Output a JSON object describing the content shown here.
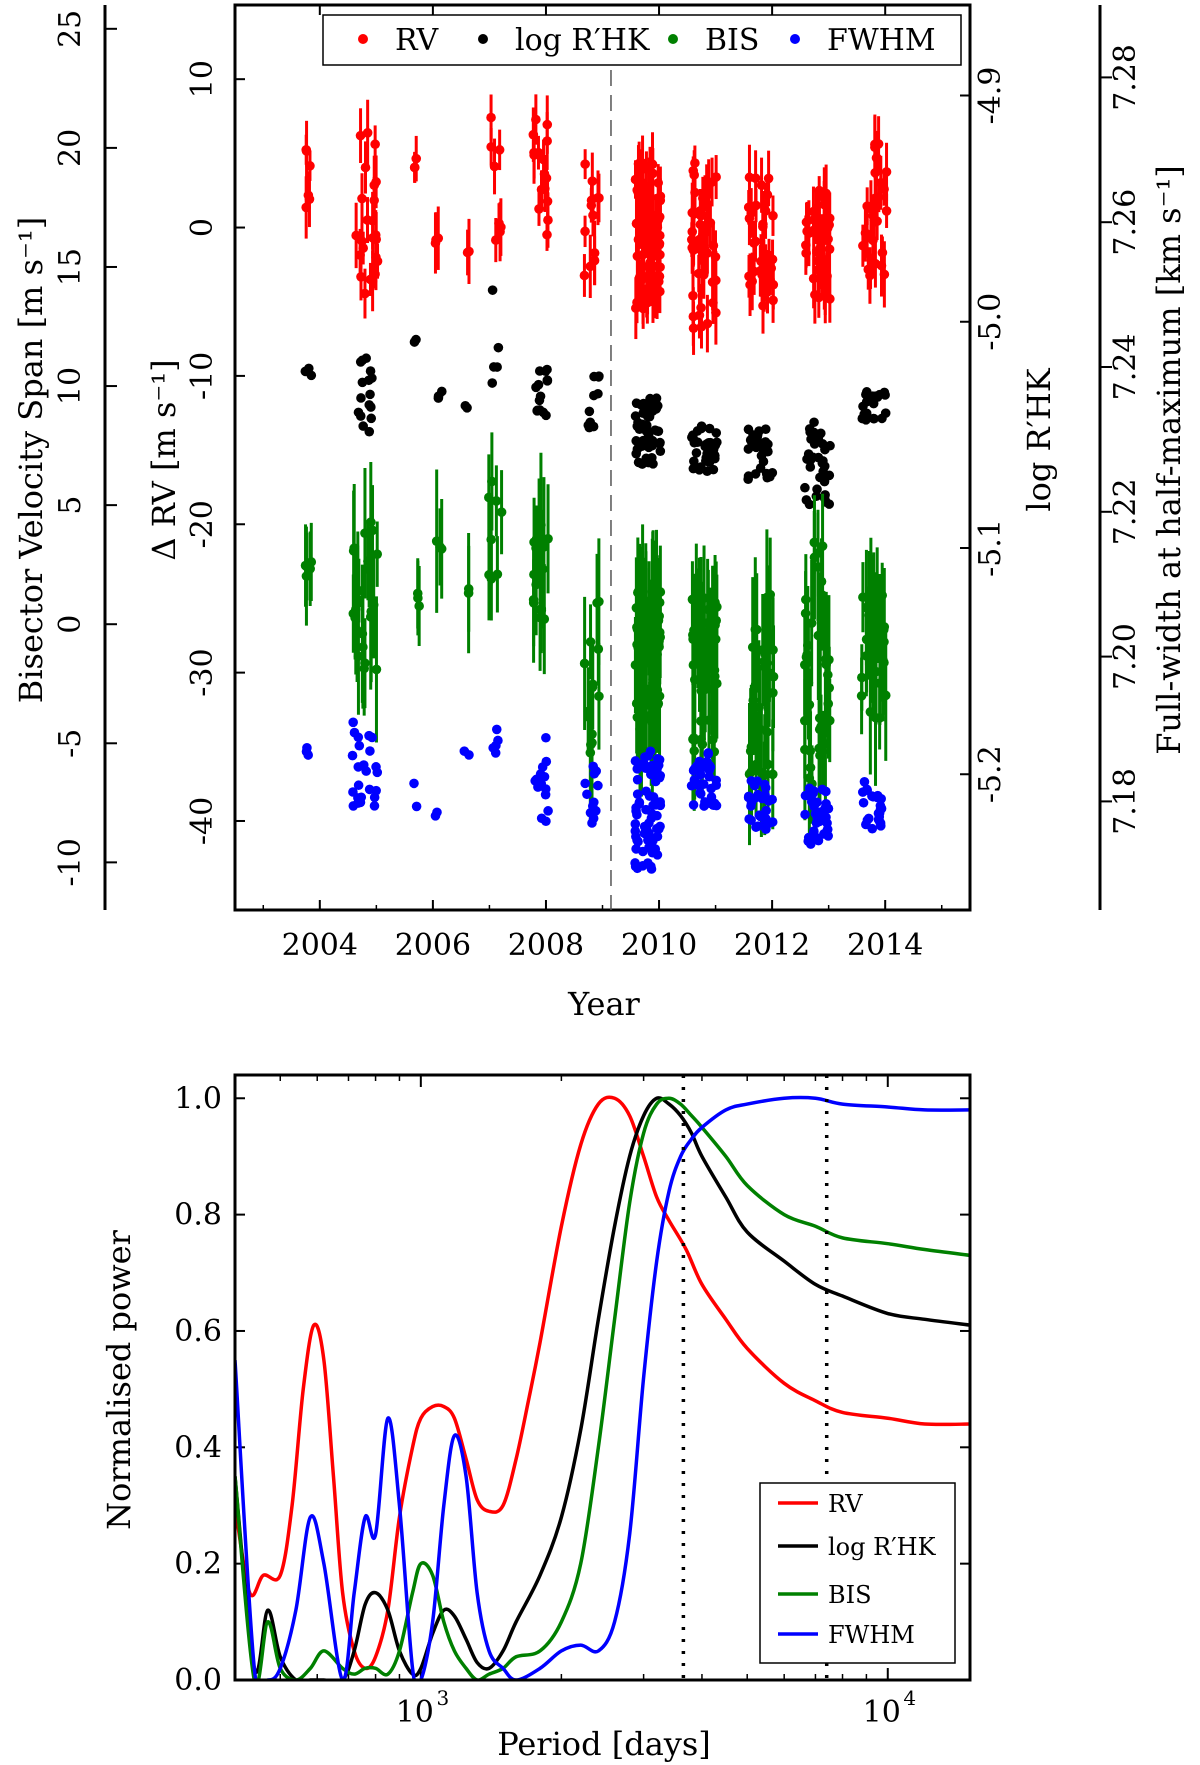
{
  "chart_data": [
    {
      "type": "scatter",
      "title": "",
      "xlabel": "Year",
      "ylabel_left_outer": "Bisector Velocity Span [m s⁻¹]",
      "ylabel_left_inner": "Δ RV [m s⁻¹]",
      "ylabel_right_inner": "log R′HK",
      "ylabel_right_outer": "Full-width at half-maximum [km s⁻¹]",
      "xlim": [
        2002.5,
        2015.5
      ],
      "ylim_rv": [
        -46,
        15
      ],
      "ylim_bis": [
        -12,
        26
      ],
      "ylim_logrhk": [
        -5.26,
        -4.86
      ],
      "ylim_fwhm": [
        7.165,
        7.29
      ],
      "x_ticks": [
        "2004",
        "2006",
        "2008",
        "2010",
        "2012",
        "2014"
      ],
      "rv_ticks": [
        "10",
        "0",
        "-10",
        "-20",
        "-30",
        "-40"
      ],
      "bis_ticks": [
        "25",
        "20",
        "15",
        "10",
        "5",
        "0",
        "-5",
        "-10"
      ],
      "logrhk_ticks": [
        "-4.9",
        "-5.0",
        "-5.1",
        "-5.2"
      ],
      "fwhm_ticks": [
        "7.28",
        "7.26",
        "7.24",
        "7.22",
        "7.20",
        "7.18"
      ],
      "vline_year": 2009.15,
      "legend": [
        "RV",
        "log R′HK",
        "BIS",
        "FWHM"
      ],
      "series": [
        {
          "name": "RV",
          "color": "#ff0000",
          "clusters": [
            {
              "x": 2003.8,
              "n": 6,
              "lo": 0.5,
              "hi": 5.5
            },
            {
              "x": 2004.8,
              "n": 24,
              "lo": -4.5,
              "hi": 6.5
            },
            {
              "x": 2005.7,
              "n": 3,
              "lo": 4.0,
              "hi": 6.0
            },
            {
              "x": 2006.1,
              "n": 3,
              "lo": -1.5,
              "hi": 0.0
            },
            {
              "x": 2006.6,
              "n": 2,
              "lo": -2.0,
              "hi": -1.0
            },
            {
              "x": 2007.1,
              "n": 8,
              "lo": -3.0,
              "hi": 7.5
            },
            {
              "x": 2007.9,
              "n": 16,
              "lo": -2.0,
              "hi": 8.0
            },
            {
              "x": 2008.8,
              "n": 12,
              "lo": -3.5,
              "hi": 4.5
            },
            {
              "x": 2009.8,
              "n": 80,
              "lo": -5.5,
              "hi": 4.5
            },
            {
              "x": 2010.8,
              "n": 45,
              "lo": -7.0,
              "hi": 5.5
            },
            {
              "x": 2011.8,
              "n": 35,
              "lo": -5.5,
              "hi": 3.5
            },
            {
              "x": 2012.8,
              "n": 40,
              "lo": -5.0,
              "hi": 2.5
            },
            {
              "x": 2013.8,
              "n": 28,
              "lo": -3.5,
              "hi": 6.0
            }
          ]
        },
        {
          "name": "log R′HK",
          "color": "#000000",
          "clusters": [
            {
              "x": 2003.8,
              "n": 3,
              "lo": -10.0,
              "hi": -9.0
            },
            {
              "x": 2004.8,
              "n": 16,
              "lo": -14.0,
              "hi": -8.5
            },
            {
              "x": 2005.7,
              "n": 2,
              "lo": -8.0,
              "hi": -7.5
            },
            {
              "x": 2006.1,
              "n": 3,
              "lo": -11.5,
              "hi": -11.0
            },
            {
              "x": 2006.6,
              "n": 2,
              "lo": -12.5,
              "hi": -12.0
            },
            {
              "x": 2007.1,
              "n": 5,
              "lo": -11.0,
              "hi": -4.0
            },
            {
              "x": 2007.9,
              "n": 14,
              "lo": -13.0,
              "hi": -9.0
            },
            {
              "x": 2008.8,
              "n": 10,
              "lo": -13.5,
              "hi": -10.0
            },
            {
              "x": 2009.8,
              "n": 55,
              "lo": -16.0,
              "hi": -11.5
            },
            {
              "x": 2010.8,
              "n": 35,
              "lo": -16.5,
              "hi": -13.0
            },
            {
              "x": 2011.8,
              "n": 30,
              "lo": -17.0,
              "hi": -13.5
            },
            {
              "x": 2012.8,
              "n": 35,
              "lo": -19.0,
              "hi": -13.0
            },
            {
              "x": 2013.8,
              "n": 22,
              "lo": -13.0,
              "hi": -11.0
            }
          ]
        },
        {
          "name": "BIS",
          "color": "#008000",
          "clusters": [
            {
              "x": 2003.8,
              "n": 5,
              "lo": 1.5,
              "hi": 3.5
            },
            {
              "x": 2004.8,
              "n": 24,
              "lo": -2.5,
              "hi": 4.5
            },
            {
              "x": 2005.7,
              "n": 3,
              "lo": 0.5,
              "hi": 3.0
            },
            {
              "x": 2006.1,
              "n": 3,
              "lo": 2.5,
              "hi": 3.5
            },
            {
              "x": 2006.6,
              "n": 2,
              "lo": 1.0,
              "hi": 2.0
            },
            {
              "x": 2007.1,
              "n": 8,
              "lo": 1.5,
              "hi": 6.0
            },
            {
              "x": 2007.9,
              "n": 16,
              "lo": -0.5,
              "hi": 4.5
            },
            {
              "x": 2008.8,
              "n": 14,
              "lo": -6.0,
              "hi": 1.0
            },
            {
              "x": 2009.8,
              "n": 80,
              "lo": -4.5,
              "hi": 1.5
            },
            {
              "x": 2010.8,
              "n": 45,
              "lo": -5.5,
              "hi": 1.5
            },
            {
              "x": 2011.8,
              "n": 35,
              "lo": -6.5,
              "hi": 1.5
            },
            {
              "x": 2012.8,
              "n": 40,
              "lo": -7.0,
              "hi": 3.5
            },
            {
              "x": 2013.8,
              "n": 28,
              "lo": -4.0,
              "hi": 1.5
            }
          ]
        },
        {
          "name": "FWHM",
          "color": "#0000ff",
          "clusters": [
            {
              "x": 2003.8,
              "n": 3,
              "lo": 7.186,
              "hi": 7.188
            },
            {
              "x": 2004.8,
              "n": 24,
              "lo": 7.177,
              "hi": 7.191
            },
            {
              "x": 2005.7,
              "n": 2,
              "lo": 7.178,
              "hi": 7.186
            },
            {
              "x": 2006.1,
              "n": 2,
              "lo": 7.177,
              "hi": 7.179
            },
            {
              "x": 2006.6,
              "n": 2,
              "lo": 7.186,
              "hi": 7.187
            },
            {
              "x": 2007.1,
              "n": 5,
              "lo": 7.186,
              "hi": 7.19
            },
            {
              "x": 2007.9,
              "n": 16,
              "lo": 7.176,
              "hi": 7.189
            },
            {
              "x": 2008.8,
              "n": 12,
              "lo": 7.177,
              "hi": 7.186
            },
            {
              "x": 2009.8,
              "n": 70,
              "lo": 7.17,
              "hi": 7.187
            },
            {
              "x": 2010.8,
              "n": 35,
              "lo": 7.179,
              "hi": 7.187
            },
            {
              "x": 2011.8,
              "n": 30,
              "lo": 7.176,
              "hi": 7.183
            },
            {
              "x": 2012.8,
              "n": 35,
              "lo": 7.174,
              "hi": 7.182
            },
            {
              "x": 2013.8,
              "n": 24,
              "lo": 7.176,
              "hi": 7.183
            }
          ]
        }
      ]
    },
    {
      "type": "line",
      "title": "",
      "xlabel": "Period [days]",
      "ylabel": "Normalised power",
      "xscale": "log",
      "xlim": [
        400,
        15000
      ],
      "ylim": [
        0.0,
        1.04
      ],
      "y_ticks": [
        "0.0",
        "0.2",
        "0.4",
        "0.6",
        "0.8",
        "1.0"
      ],
      "x_tick_base": "10",
      "x_tick_exps": [
        "3",
        "4"
      ],
      "vlines_period": [
        3650,
        7400
      ],
      "legend": [
        "RV",
        "log R′HK",
        "BIS",
        "FWHM"
      ],
      "series": [
        {
          "name": "RV",
          "color": "#ff0000",
          "x": [
            400,
            430,
            460,
            500,
            530,
            560,
            590,
            620,
            650,
            680,
            720,
            760,
            800,
            850,
            900,
            960,
            1000,
            1060,
            1120,
            1180,
            1250,
            1320,
            1400,
            1500,
            1600,
            1700,
            1800,
            2000,
            2200,
            2400,
            2600,
            2800,
            3000,
            3200,
            3400,
            3700,
            4000,
            4500,
            5000,
            6000,
            7000,
            8000,
            10000,
            12000,
            15000
          ],
          "y": [
            0.3,
            0.15,
            0.18,
            0.18,
            0.3,
            0.5,
            0.61,
            0.55,
            0.35,
            0.15,
            0.05,
            0.02,
            0.04,
            0.12,
            0.28,
            0.4,
            0.45,
            0.47,
            0.47,
            0.45,
            0.38,
            0.31,
            0.29,
            0.3,
            0.38,
            0.48,
            0.58,
            0.78,
            0.92,
            0.99,
            1.0,
            0.97,
            0.9,
            0.83,
            0.79,
            0.74,
            0.68,
            0.62,
            0.57,
            0.51,
            0.48,
            0.46,
            0.45,
            0.44,
            0.44
          ]
        },
        {
          "name": "log R′HK",
          "color": "#000000",
          "x": [
            400,
            440,
            470,
            500,
            540,
            580,
            620,
            680,
            720,
            760,
            800,
            850,
            900,
            960,
            1000,
            1060,
            1120,
            1180,
            1250,
            1320,
            1400,
            1500,
            1600,
            1800,
            2000,
            2200,
            2400,
            2600,
            2800,
            3000,
            3200,
            3400,
            3600,
            3800,
            4000,
            4500,
            5000,
            6000,
            7000,
            8000,
            10000,
            12000,
            15000
          ],
          "y": [
            0.35,
            0.02,
            0.12,
            0.04,
            0.0,
            0.0,
            0.0,
            0.0,
            0.05,
            0.13,
            0.15,
            0.12,
            0.05,
            0.01,
            0.02,
            0.08,
            0.12,
            0.11,
            0.07,
            0.03,
            0.02,
            0.05,
            0.1,
            0.18,
            0.28,
            0.43,
            0.62,
            0.78,
            0.9,
            0.97,
            1.0,
            0.99,
            0.97,
            0.94,
            0.9,
            0.83,
            0.77,
            0.72,
            0.68,
            0.66,
            0.63,
            0.62,
            0.61
          ]
        },
        {
          "name": "BIS",
          "color": "#008000",
          "x": [
            400,
            440,
            470,
            500,
            540,
            580,
            620,
            680,
            720,
            760,
            800,
            850,
            900,
            960,
            1000,
            1060,
            1120,
            1180,
            1250,
            1320,
            1400,
            1500,
            1600,
            1800,
            2000,
            2200,
            2400,
            2600,
            2800,
            3000,
            3200,
            3400,
            3600,
            3800,
            4000,
            4500,
            5000,
            6000,
            7000,
            8000,
            10000,
            12000,
            15000
          ],
          "y": [
            0.35,
            0.0,
            0.1,
            0.02,
            0.0,
            0.02,
            0.05,
            0.02,
            0.01,
            0.02,
            0.02,
            0.01,
            0.05,
            0.15,
            0.2,
            0.18,
            0.1,
            0.05,
            0.02,
            0.0,
            0.01,
            0.02,
            0.04,
            0.05,
            0.1,
            0.2,
            0.4,
            0.62,
            0.82,
            0.94,
            0.99,
            1.0,
            0.99,
            0.97,
            0.95,
            0.9,
            0.85,
            0.8,
            0.78,
            0.76,
            0.75,
            0.74,
            0.73
          ]
        },
        {
          "name": "FWHM",
          "color": "#0000ff",
          "x": [
            400,
            440,
            470,
            500,
            540,
            580,
            620,
            680,
            720,
            760,
            800,
            850,
            900,
            960,
            1000,
            1060,
            1120,
            1180,
            1250,
            1320,
            1400,
            1500,
            1600,
            1800,
            2000,
            2200,
            2400,
            2600,
            2800,
            3000,
            3200,
            3400,
            3600,
            3800,
            4000,
            4500,
            5000,
            6000,
            7000,
            8000,
            10000,
            12000,
            15000
          ],
          "y": [
            0.55,
            0.02,
            0.0,
            0.02,
            0.12,
            0.28,
            0.2,
            0.0,
            0.15,
            0.28,
            0.25,
            0.45,
            0.3,
            0.02,
            0.0,
            0.1,
            0.3,
            0.42,
            0.35,
            0.15,
            0.05,
            0.02,
            0.0,
            0.02,
            0.05,
            0.06,
            0.05,
            0.1,
            0.25,
            0.52,
            0.72,
            0.84,
            0.9,
            0.93,
            0.95,
            0.98,
            0.99,
            1.0,
            1.0,
            0.99,
            0.985,
            0.98,
            0.98
          ]
        }
      ]
    }
  ]
}
